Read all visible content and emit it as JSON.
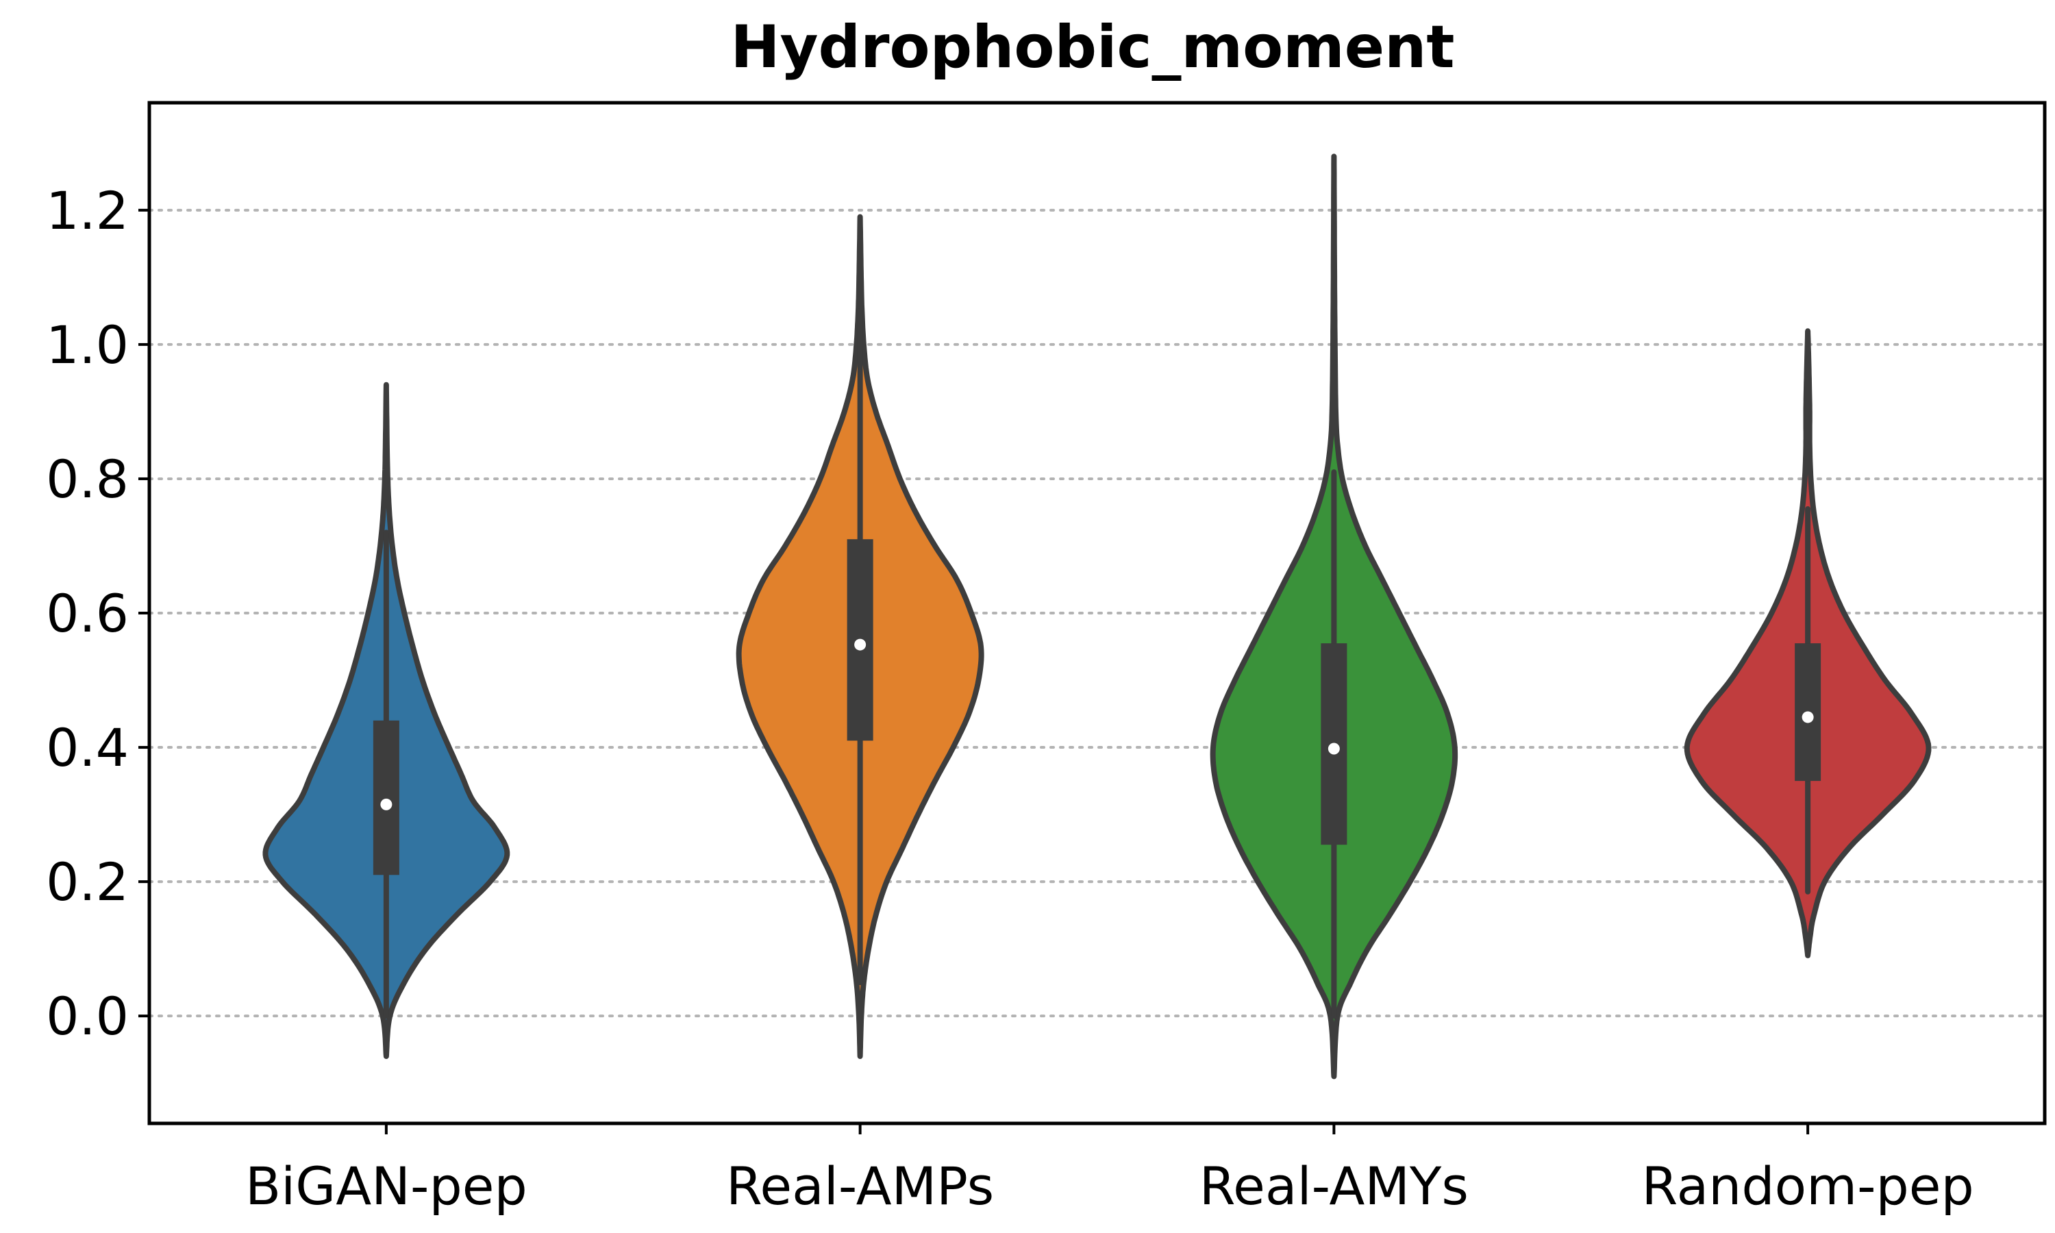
{
  "chart_data": {
    "type": "violin",
    "title": "Hydrophobic_moment",
    "xlabel": "",
    "ylabel": "",
    "ylim": [
      -0.16,
      1.36
    ],
    "yticks": [
      0.0,
      0.2,
      0.4,
      0.6,
      0.8,
      1.0,
      1.2
    ],
    "ytick_labels": [
      "0.0",
      "0.2",
      "0.4",
      "0.6",
      "0.8",
      "1.0",
      "1.2"
    ],
    "grid": "horizontal dotted",
    "categories": [
      "BiGAN-pep",
      "Real-AMPs",
      "Real-AMYs",
      "Random-pep"
    ],
    "series": [
      {
        "category": "BiGAN-pep",
        "color": "#3274a1",
        "min": -0.06,
        "max": 0.94,
        "q1": 0.21,
        "median": 0.315,
        "q3": 0.44,
        "whisker_low": 0.0,
        "whisker_high": 0.72,
        "density": [
          [
            -0.06,
            0.0
          ],
          [
            0.0,
            0.03
          ],
          [
            0.05,
            0.15
          ],
          [
            0.1,
            0.33
          ],
          [
            0.15,
            0.58
          ],
          [
            0.2,
            0.86
          ],
          [
            0.24,
            1.0
          ],
          [
            0.28,
            0.9
          ],
          [
            0.32,
            0.72
          ],
          [
            0.36,
            0.62
          ],
          [
            0.4,
            0.52
          ],
          [
            0.45,
            0.4
          ],
          [
            0.5,
            0.3
          ],
          [
            0.55,
            0.22
          ],
          [
            0.6,
            0.15
          ],
          [
            0.65,
            0.09
          ],
          [
            0.7,
            0.05
          ],
          [
            0.75,
            0.025
          ],
          [
            0.8,
            0.012
          ],
          [
            0.85,
            0.006
          ],
          [
            0.94,
            0.0
          ]
        ]
      },
      {
        "category": "Real-AMPs",
        "color": "#e1812c",
        "min": -0.06,
        "max": 1.19,
        "q1": 0.41,
        "median": 0.553,
        "q3": 0.71,
        "whisker_low": 0.05,
        "whisker_high": 1.05,
        "density": [
          [
            -0.06,
            0.0
          ],
          [
            0.0,
            0.01
          ],
          [
            0.05,
            0.03
          ],
          [
            0.1,
            0.07
          ],
          [
            0.15,
            0.13
          ],
          [
            0.2,
            0.22
          ],
          [
            0.25,
            0.35
          ],
          [
            0.3,
            0.48
          ],
          [
            0.35,
            0.62
          ],
          [
            0.4,
            0.77
          ],
          [
            0.45,
            0.9
          ],
          [
            0.5,
            0.98
          ],
          [
            0.55,
            1.0
          ],
          [
            0.6,
            0.92
          ],
          [
            0.65,
            0.8
          ],
          [
            0.7,
            0.62
          ],
          [
            0.75,
            0.46
          ],
          [
            0.8,
            0.33
          ],
          [
            0.85,
            0.23
          ],
          [
            0.9,
            0.13
          ],
          [
            0.95,
            0.06
          ],
          [
            1.0,
            0.03
          ],
          [
            1.05,
            0.015
          ],
          [
            1.1,
            0.008
          ],
          [
            1.19,
            0.0
          ]
        ]
      },
      {
        "category": "Real-AMYs",
        "color": "#3a923a",
        "min": -0.09,
        "max": 1.28,
        "q1": 0.255,
        "median": 0.398,
        "q3": 0.555,
        "whisker_low": 0.0,
        "whisker_high": 0.81,
        "density": [
          [
            -0.09,
            0.0
          ],
          [
            0.0,
            0.03
          ],
          [
            0.05,
            0.14
          ],
          [
            0.1,
            0.28
          ],
          [
            0.15,
            0.46
          ],
          [
            0.2,
            0.63
          ],
          [
            0.25,
            0.78
          ],
          [
            0.3,
            0.9
          ],
          [
            0.35,
            0.98
          ],
          [
            0.4,
            1.0
          ],
          [
            0.45,
            0.94
          ],
          [
            0.5,
            0.82
          ],
          [
            0.55,
            0.68
          ],
          [
            0.6,
            0.54
          ],
          [
            0.65,
            0.4
          ],
          [
            0.7,
            0.26
          ],
          [
            0.75,
            0.15
          ],
          [
            0.8,
            0.07
          ],
          [
            0.85,
            0.03
          ],
          [
            0.9,
            0.015
          ],
          [
            1.0,
            0.008
          ],
          [
            1.1,
            0.004
          ],
          [
            1.28,
            0.0
          ]
        ]
      },
      {
        "category": "Random-pep",
        "color": "#c03d3e",
        "min": 0.09,
        "max": 1.02,
        "q1": 0.35,
        "median": 0.445,
        "q3": 0.555,
        "whisker_low": 0.185,
        "whisker_high": 0.755,
        "density": [
          [
            0.09,
            0.0
          ],
          [
            0.12,
            0.02
          ],
          [
            0.15,
            0.05
          ],
          [
            0.2,
            0.14
          ],
          [
            0.25,
            0.34
          ],
          [
            0.3,
            0.62
          ],
          [
            0.35,
            0.88
          ],
          [
            0.4,
            1.0
          ],
          [
            0.45,
            0.86
          ],
          [
            0.5,
            0.64
          ],
          [
            0.55,
            0.46
          ],
          [
            0.6,
            0.3
          ],
          [
            0.65,
            0.18
          ],
          [
            0.7,
            0.1
          ],
          [
            0.75,
            0.05
          ],
          [
            0.8,
            0.025
          ],
          [
            0.85,
            0.015
          ],
          [
            0.9,
            0.015
          ],
          [
            0.95,
            0.01
          ],
          [
            1.02,
            0.0
          ]
        ]
      }
    ]
  }
}
